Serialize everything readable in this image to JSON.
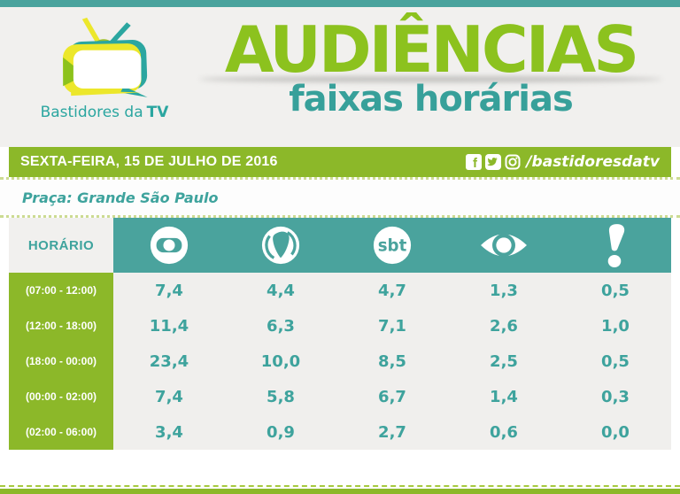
{
  "brand": {
    "name": "Bastidores da",
    "name_bold": "TV"
  },
  "header": {
    "title": "AUDIÊNCIAS",
    "subtitle": "faixas horárias"
  },
  "date_bar": {
    "date": "SEXTA-FEIRA, 15 DE JULHO DE 2016",
    "facebook_letter": "f",
    "social_handle": "/bastidoresdatv"
  },
  "region": {
    "label": "Praça: Grande São Paulo"
  },
  "table": {
    "header_label": "HORÁRIO",
    "networks": [
      {
        "name": "Globo"
      },
      {
        "name": "Record"
      },
      {
        "name": "SBT",
        "logo_text": "sbt"
      },
      {
        "name": "Band"
      },
      {
        "name": "RedeTV!"
      }
    ],
    "rows": [
      {
        "time": "(07:00 - 12:00)",
        "values": [
          "7,4",
          "4,4",
          "4,7",
          "1,3",
          "0,5"
        ]
      },
      {
        "time": "(12:00 - 18:00)",
        "values": [
          "11,4",
          "6,3",
          "7,1",
          "2,6",
          "1,0"
        ]
      },
      {
        "time": "(18:00 - 00:00)",
        "values": [
          "23,4",
          "10,0",
          "8,5",
          "2,5",
          "0,5"
        ]
      },
      {
        "time": "(00:00 - 02:00)",
        "values": [
          "7,4",
          "5,8",
          "6,7",
          "1,4",
          "0,3"
        ]
      },
      {
        "time": "(02:00 - 06:00)",
        "values": [
          "3,4",
          "0,9",
          "2,7",
          "0,6",
          "0,0"
        ]
      }
    ]
  },
  "colors": {
    "green_bar": "#8cb829",
    "title_green": "#8cc21e",
    "teal_band": "#4aa39d",
    "teal_text": "#3ea39d",
    "logo_yellow": "#ece72b",
    "logo_teal": "#2ba6a0"
  },
  "chart_data": {
    "type": "table",
    "title": "AUDIÊNCIAS faixas horárias",
    "subtitle": "SEXTA-FEIRA, 15 DE JULHO DE 2016 — Praça: Grande São Paulo",
    "columns": [
      "HORÁRIO",
      "Globo",
      "Record",
      "SBT",
      "Band",
      "RedeTV!"
    ],
    "rows": [
      [
        "(07:00 - 12:00)",
        7.4,
        4.4,
        4.7,
        1.3,
        0.5
      ],
      [
        "(12:00 - 18:00)",
        11.4,
        6.3,
        7.1,
        2.6,
        1.0
      ],
      [
        "(18:00 - 00:00)",
        23.4,
        10.0,
        8.5,
        2.5,
        0.5
      ],
      [
        "(00:00 - 02:00)",
        7.4,
        5.8,
        6.7,
        1.4,
        0.3
      ],
      [
        "(02:00 - 06:00)",
        3.4,
        0.9,
        2.7,
        0.6,
        0.0
      ]
    ]
  }
}
